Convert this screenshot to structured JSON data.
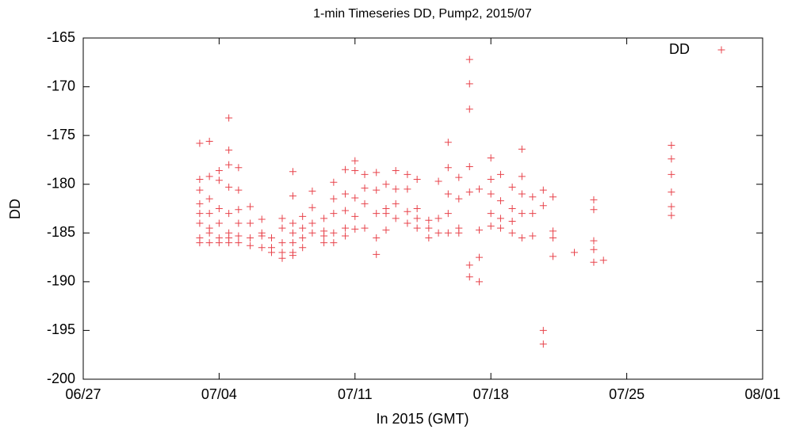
{
  "chart_data": {
    "type": "scatter",
    "title": "1-min Timeseries DD, Pump2, 2015/07",
    "xlabel": "In 2015 (GMT)",
    "ylabel": "DD",
    "xlim": [
      0,
      35
    ],
    "xticks": [
      {
        "value": 0,
        "label": "06/27"
      },
      {
        "value": 7,
        "label": "07/04"
      },
      {
        "value": 14,
        "label": "07/11"
      },
      {
        "value": 21,
        "label": "07/18"
      },
      {
        "value": 28,
        "label": "07/25"
      },
      {
        "value": 35,
        "label": "08/01"
      }
    ],
    "ylim": [
      -200,
      -165
    ],
    "yticks": [
      -200,
      -195,
      -190,
      -185,
      -180,
      -175,
      -170,
      -165
    ],
    "legend": "top-right",
    "series": [
      {
        "name": "DD",
        "color": "#e8434b",
        "x": [
          6.0,
          6.0,
          6.0,
          6.0,
          6.0,
          6.0,
          6.0,
          6.0,
          6.5,
          6.5,
          6.5,
          6.5,
          6.5,
          6.5,
          6.5,
          7.0,
          7.0,
          7.0,
          7.0,
          7.0,
          7.0,
          7.5,
          7.5,
          7.5,
          7.5,
          7.5,
          7.5,
          7.5,
          7.5,
          8.0,
          8.0,
          8.0,
          8.0,
          8.0,
          8.0,
          8.6,
          8.6,
          8.6,
          8.6,
          9.2,
          9.2,
          9.2,
          9.2,
          9.7,
          9.7,
          9.7,
          10.25,
          10.25,
          10.25,
          10.25,
          10.25,
          10.8,
          10.8,
          10.8,
          10.8,
          10.8,
          10.8,
          10.8,
          11.3,
          11.3,
          11.3,
          11.3,
          11.8,
          11.8,
          11.8,
          11.8,
          12.4,
          12.4,
          12.4,
          12.4,
          12.9,
          12.9,
          12.9,
          12.9,
          12.9,
          13.5,
          13.5,
          13.5,
          13.5,
          13.5,
          14.0,
          14.0,
          14.0,
          14.0,
          14.0,
          14.5,
          14.5,
          14.5,
          14.5,
          15.1,
          15.1,
          15.1,
          15.1,
          15.1,
          15.6,
          15.6,
          15.6,
          15.6,
          16.1,
          16.1,
          16.1,
          16.1,
          16.7,
          16.7,
          16.7,
          16.7,
          17.2,
          17.2,
          17.2,
          17.2,
          17.8,
          17.8,
          17.8,
          18.3,
          18.3,
          18.3,
          18.8,
          18.8,
          18.8,
          18.8,
          18.8,
          19.35,
          19.35,
          19.35,
          19.35,
          19.9,
          19.9,
          19.9,
          19.9,
          19.9,
          19.9,
          19.9,
          20.4,
          20.4,
          20.4,
          20.4,
          21.0,
          21.0,
          21.0,
          21.0,
          21.0,
          21.5,
          21.5,
          21.5,
          21.5,
          22.1,
          22.1,
          22.1,
          22.1,
          22.6,
          22.6,
          22.6,
          22.6,
          22.6,
          23.15,
          23.15,
          23.15,
          23.7,
          23.7,
          23.7,
          23.7,
          24.2,
          24.2,
          24.2,
          24.2,
          25.3,
          26.3,
          26.3,
          26.3,
          26.3,
          26.3,
          26.8,
          30.3,
          30.3,
          30.3,
          30.3,
          30.3,
          30.3
        ],
        "values": [
          -175.8,
          -179.5,
          -180.6,
          -182,
          -183,
          -184,
          -185.5,
          -186,
          -175.6,
          -179.2,
          -181.5,
          -183,
          -184.5,
          -185,
          -186,
          -178.6,
          -179.6,
          -182.5,
          -184,
          -185.5,
          -186,
          -173.2,
          -176.5,
          -178,
          -180.3,
          -183,
          -185,
          -185.5,
          -186,
          -178.3,
          -180.6,
          -182.6,
          -184,
          -185.3,
          -186,
          -182.3,
          -184,
          -185.5,
          -186.3,
          -183.6,
          -185,
          -185.3,
          -186.5,
          -185.5,
          -186.5,
          -187,
          -183.5,
          -184.5,
          -186,
          -187,
          -187.6,
          -178.7,
          -181.2,
          -184,
          -185,
          -186,
          -187,
          -187.3,
          -183.3,
          -184.5,
          -185.5,
          -186.5,
          -180.7,
          -182.4,
          -184,
          -185,
          -183.5,
          -184.8,
          -185.3,
          -186,
          -179.8,
          -181.5,
          -183,
          -185,
          -186,
          -178.5,
          -181,
          -182.7,
          -184.5,
          -185.3,
          -177.6,
          -178.6,
          -181.4,
          -183.3,
          -184.6,
          -179,
          -180.4,
          -182,
          -184.5,
          -178.8,
          -180.6,
          -183,
          -185.5,
          -187.2,
          -180,
          -182.5,
          -183,
          -184.7,
          -178.6,
          -180.5,
          -182,
          -183.5,
          -179,
          -180.5,
          -182.8,
          -184,
          -179.5,
          -182.5,
          -183.5,
          -184.5,
          -183.7,
          -184.5,
          -185.5,
          -179.7,
          -183.5,
          -185,
          -175.7,
          -178.3,
          -181,
          -183,
          -185,
          -179.3,
          -181.5,
          -184.5,
          -185,
          -167.2,
          -169.7,
          -172.3,
          -178.2,
          -180.8,
          -188.3,
          -189.5,
          -180.5,
          -184.7,
          -187.5,
          -190,
          -177.3,
          -179.5,
          -181,
          -183,
          -184.3,
          -179,
          -181.7,
          -183.5,
          -184.5,
          -180.3,
          -182.5,
          -183.8,
          -185,
          -176.4,
          -179.2,
          -181,
          -183,
          -185.5,
          -181.3,
          -183,
          -185.3,
          -180.6,
          -182.2,
          -195,
          -196.4,
          -181.3,
          -184.8,
          -185.5,
          -187.4,
          -187,
          -181.6,
          -182.6,
          -185.8,
          -186.7,
          -188,
          -187.8,
          -176,
          -177.4,
          -179,
          -180.8,
          -182.3,
          -183.2
        ]
      }
    ]
  }
}
